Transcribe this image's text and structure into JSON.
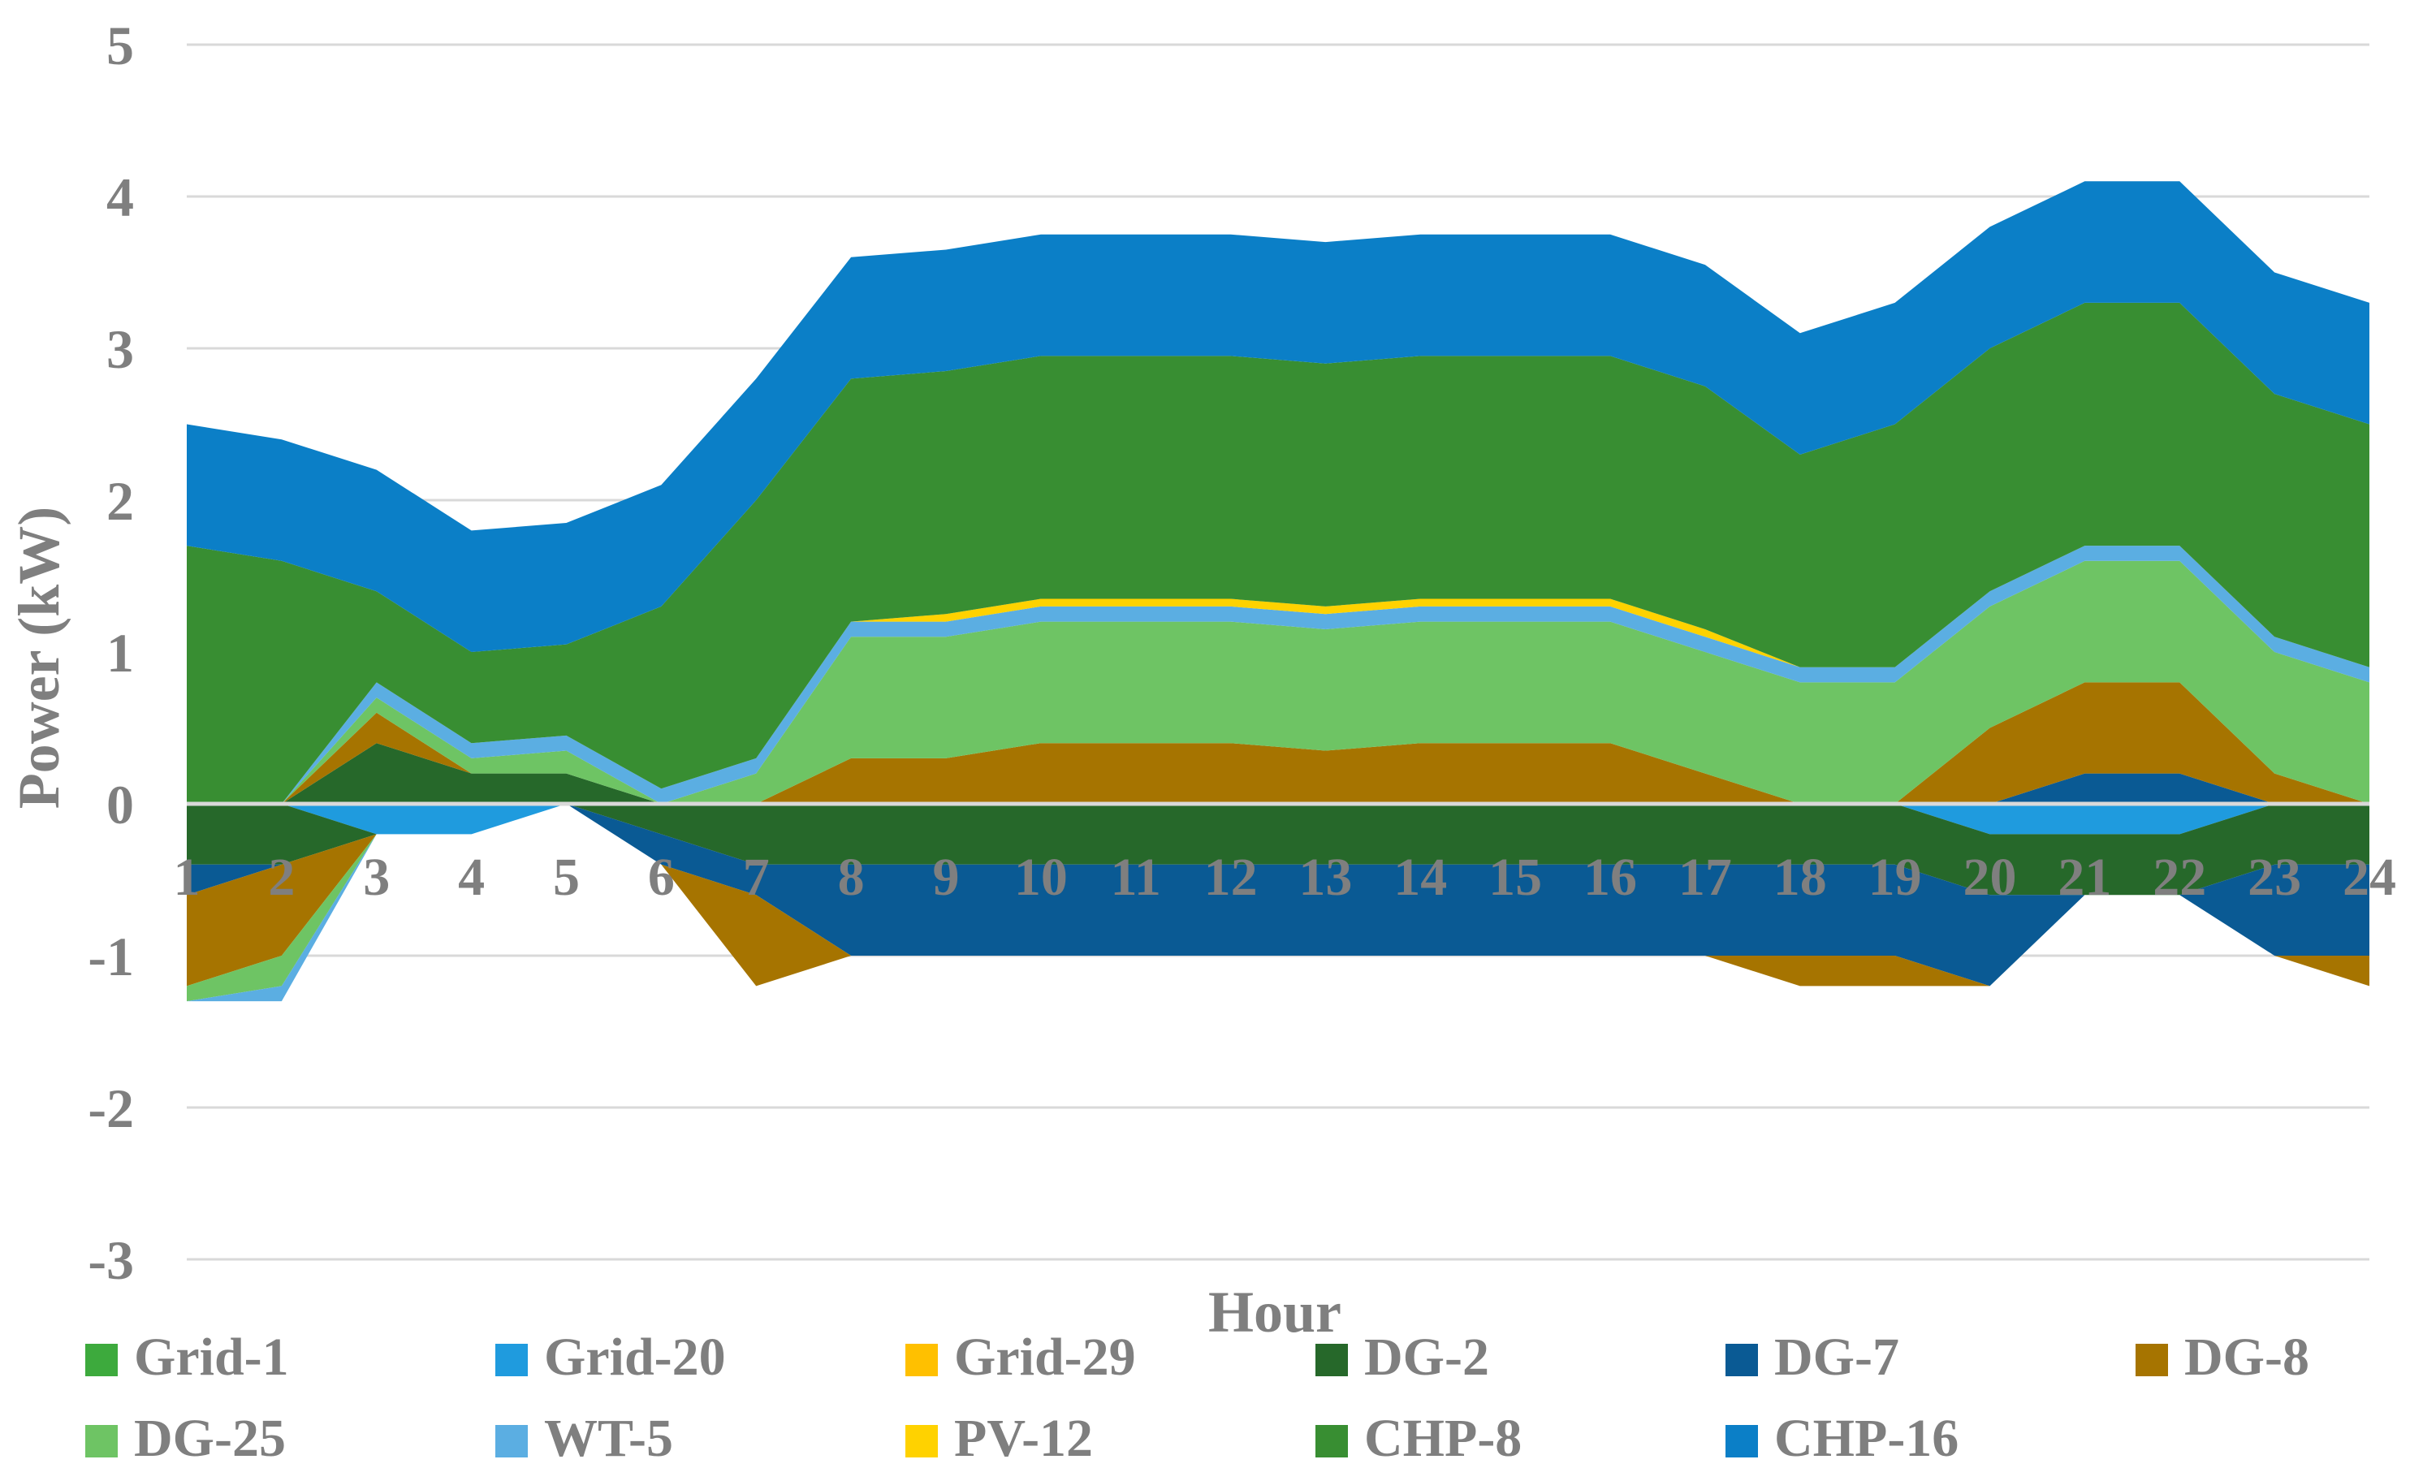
{
  "chart_data": {
    "type": "area",
    "subtype": "stacked-positive-negative",
    "title": "",
    "xlabel": "Hour",
    "ylabel": "Power (kW)",
    "ylim": [
      -3,
      5
    ],
    "yticks": [
      "5",
      "4",
      "3",
      "2",
      "1",
      "0",
      "-1",
      "-2",
      "-3"
    ],
    "categories": [
      "1",
      "2",
      "3",
      "4",
      "5",
      "6",
      "7",
      "8",
      "9",
      "10",
      "11",
      "12",
      "13",
      "14",
      "15",
      "16",
      "17",
      "18",
      "19",
      "20",
      "21",
      "22",
      "23",
      "24"
    ],
    "grid": true,
    "legend_position": "bottom",
    "series": [
      {
        "name": "Grid-1",
        "color": "#3DAA3D",
        "values": [
          0,
          0,
          0,
          0,
          0,
          0,
          0,
          0,
          0,
          0,
          0,
          0,
          0,
          0,
          0,
          0,
          0,
          0,
          0,
          0,
          0,
          0,
          0,
          0
        ]
      },
      {
        "name": "Grid-20",
        "color": "#1F9BDE",
        "values": [
          0,
          0,
          -0.2,
          -0.2,
          0,
          0,
          0,
          0,
          0,
          0,
          0,
          0,
          0,
          0,
          0,
          0,
          0,
          0,
          0,
          -0.2,
          -0.2,
          -0.2,
          0,
          0
        ]
      },
      {
        "name": "Grid-29",
        "color": "#FFC000",
        "values": [
          0,
          0,
          0,
          0,
          0,
          0,
          0,
          0,
          0,
          0,
          0,
          0,
          0,
          0,
          0,
          0,
          0,
          0,
          0,
          0,
          0,
          0,
          0,
          0
        ]
      },
      {
        "name": "DG-2",
        "color": "#26682A",
        "values": [
          -0.4,
          -0.4,
          0.4,
          0.2,
          0.2,
          -0.2,
          -0.4,
          -0.4,
          -0.4,
          -0.4,
          -0.4,
          -0.4,
          -0.4,
          -0.4,
          -0.4,
          -0.4,
          -0.4,
          -0.4,
          -0.4,
          -0.4,
          -0.4,
          -0.4,
          -0.4,
          -0.4
        ]
      },
      {
        "name": "DG-7",
        "color": "#0A5A94",
        "values": [
          -0.2,
          0,
          0,
          0,
          0,
          -0.2,
          -0.2,
          -0.6,
          -0.6,
          -0.6,
          -0.6,
          -0.6,
          -0.6,
          -0.6,
          -0.6,
          -0.6,
          -0.6,
          -0.6,
          -0.6,
          -0.6,
          0.2,
          0.2,
          -0.6,
          -0.6
        ]
      },
      {
        "name": "DG-8",
        "color": "#A67400",
        "values": [
          -0.6,
          -0.6,
          0.2,
          0,
          0,
          0,
          -0.6,
          0.3,
          0.3,
          0.4,
          0.4,
          0.4,
          0.35,
          0.4,
          0.4,
          0.4,
          0.2,
          -0.2,
          -0.2,
          0.5,
          0.6,
          0.6,
          0.2,
          -0.2
        ]
      },
      {
        "name": "DG-25",
        "color": "#6EC464",
        "values": [
          -0.1,
          -0.2,
          0.1,
          0.1,
          0.15,
          0,
          0.2,
          0.8,
          0.8,
          0.8,
          0.8,
          0.8,
          0.8,
          0.8,
          0.8,
          0.8,
          0.8,
          0.8,
          0.8,
          0.8,
          0.8,
          0.8,
          0.8,
          0.8
        ]
      },
      {
        "name": "WT-5",
        "color": "#5BAEE2",
        "values": [
          0,
          -0.1,
          0.1,
          0.1,
          0.1,
          0.1,
          0.1,
          0.1,
          0.1,
          0.1,
          0.1,
          0.1,
          0.1,
          0.1,
          0.1,
          0.1,
          0.1,
          0.1,
          0.1,
          0.1,
          0.1,
          0.1,
          0.1,
          0.1
        ]
      },
      {
        "name": "PV-12",
        "color": "#FFD200",
        "values": [
          0,
          0,
          0,
          0,
          0,
          0,
          0,
          0,
          0.05,
          0.05,
          0.05,
          0.05,
          0.05,
          0.05,
          0.05,
          0.05,
          0.05,
          0,
          0,
          0,
          0,
          0,
          0,
          0
        ]
      },
      {
        "name": "CHP-8",
        "color": "#388E32",
        "values": [
          1.7,
          1.6,
          0.6,
          0.6,
          0.6,
          1.2,
          1.7,
          1.6,
          1.6,
          1.6,
          1.6,
          1.6,
          1.6,
          1.6,
          1.6,
          1.6,
          1.6,
          1.4,
          1.6,
          1.6,
          1.6,
          1.6,
          1.6,
          1.6
        ]
      },
      {
        "name": "CHP-16",
        "color": "#0B7FC7",
        "values": [
          0.8,
          0.8,
          0.8,
          0.8,
          0.8,
          0.8,
          0.8,
          0.8,
          0.8,
          0.8,
          0.8,
          0.8,
          0.8,
          0.8,
          0.8,
          0.8,
          0.8,
          0.8,
          0.8,
          0.8,
          0.8,
          0.8,
          0.8,
          0.8
        ]
      }
    ]
  }
}
